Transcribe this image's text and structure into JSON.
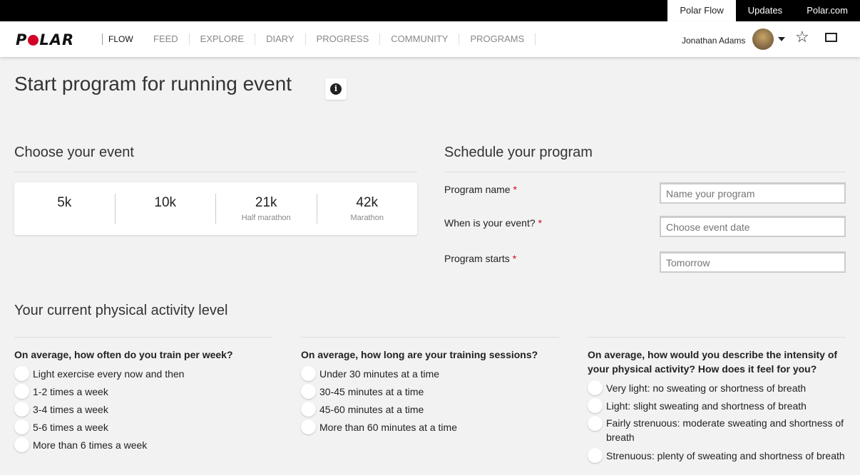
{
  "topbar": {
    "links": [
      "Polar Flow",
      "Updates",
      "Polar.com"
    ]
  },
  "nav": {
    "logo": "POLAR",
    "product": "FLOW",
    "items": [
      "FEED",
      "EXPLORE",
      "DIARY",
      "PROGRESS",
      "COMMUNITY",
      "PROGRAMS"
    ],
    "user": "Jonathan Adams"
  },
  "page": {
    "title": "Start program for running event",
    "info_icon": "i"
  },
  "event": {
    "heading": "Choose your event",
    "options": [
      {
        "distance": "5k",
        "sub": ""
      },
      {
        "distance": "10k",
        "sub": ""
      },
      {
        "distance": "21k",
        "sub": "Half marathon"
      },
      {
        "distance": "42k",
        "sub": "Marathon"
      }
    ]
  },
  "schedule": {
    "heading": "Schedule your program",
    "required_mark": "*",
    "fields": [
      {
        "label": "Program name",
        "placeholder": "Name your program"
      },
      {
        "label": "When is your event?",
        "placeholder": "Choose event date"
      },
      {
        "label": "Program starts",
        "placeholder": "Tomorrow"
      }
    ]
  },
  "activity": {
    "heading": "Your current physical activity level",
    "questions": [
      {
        "question": "On average, how often do you train per week?",
        "options": [
          "Light exercise every now and then",
          "1-2 times a week",
          "3-4 times a week",
          "5-6 times a week",
          "More than 6 times a week"
        ]
      },
      {
        "question": "On average, how long are your training sessions?",
        "options": [
          "Under 30 minutes at a time",
          "30-45 minutes at a time",
          "45-60 minutes at a time",
          "More than 60 minutes at a time"
        ]
      },
      {
        "question": "On average, how would you describe the intensity of your physical activity? How does it feel for you?",
        "options": [
          "Very light: no sweating or shortness of breath",
          "Light: slight sweating and shortness of breath",
          "Fairly strenuous: moderate sweating and shortness of breath",
          "Strenuous: plenty of sweating and shortness of breath"
        ]
      }
    ]
  },
  "colors": {
    "accent": "#d10027",
    "background": "#f2f2f2",
    "topbar": "#000000"
  }
}
